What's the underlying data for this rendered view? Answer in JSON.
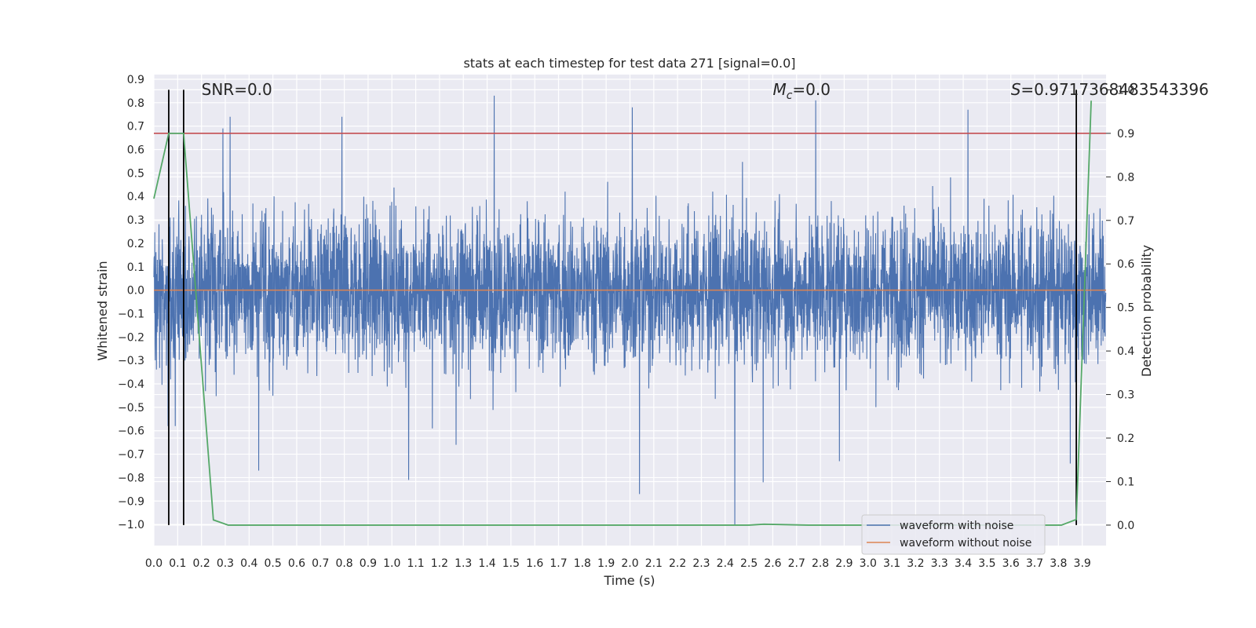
{
  "chart_data": {
    "type": "line",
    "title": "stats at each timestep for test data 271 [signal=0.0]",
    "xlabel": "Time (s)",
    "ylabel_left": "Whitened strain",
    "ylabel_right": "Detection probability",
    "xlim": [
      0.0,
      4.0
    ],
    "ylim_left": [
      -1.09,
      0.92
    ],
    "ylim_right": [
      -0.047,
      1.035
    ],
    "x_ticks": [
      "0.0",
      "0.1",
      "0.2",
      "0.3",
      "0.4",
      "0.5",
      "0.6",
      "0.7",
      "0.8",
      "0.9",
      "1.0",
      "1.1",
      "1.2",
      "1.3",
      "1.4",
      "1.5",
      "1.6",
      "1.7",
      "1.8",
      "1.9",
      "2.0",
      "2.1",
      "2.2",
      "2.3",
      "2.4",
      "2.5",
      "2.6",
      "2.7",
      "2.8",
      "2.9",
      "3.0",
      "3.1",
      "3.2",
      "3.3",
      "3.4",
      "3.5",
      "3.6",
      "3.7",
      "3.8",
      "3.9"
    ],
    "y_ticks_left": [
      "0.9",
      "0.8",
      "0.7",
      "0.6",
      "0.5",
      "0.4",
      "0.3",
      "0.2",
      "0.1",
      "0.0",
      "−0.1",
      "−0.2",
      "−0.3",
      "−0.4",
      "−0.5",
      "−0.6",
      "−0.7",
      "−0.8",
      "−0.9",
      "−1.0"
    ],
    "y_ticks_right": [
      "1.0",
      "0.9",
      "0.8",
      "0.7",
      "0.6",
      "0.5",
      "0.4",
      "0.3",
      "0.2",
      "0.1",
      "0.0"
    ],
    "grid": true,
    "legend_placement": "lower-right",
    "series": [
      {
        "name": "waveform with noise",
        "axis": "left",
        "color": "#4c72b0",
        "kind": "noise",
        "sigma": 0.16,
        "amplitude_range": [
          -1.0,
          0.83
        ],
        "n_samples": 4096,
        "outliers": [
          {
            "x": 0.06,
            "y": -0.58
          },
          {
            "x": 0.09,
            "y": -0.58
          },
          {
            "x": 0.29,
            "y": 0.69
          },
          {
            "x": 0.32,
            "y": 0.74
          },
          {
            "x": 0.44,
            "y": -0.77
          },
          {
            "x": 0.79,
            "y": 0.74
          },
          {
            "x": 1.07,
            "y": -0.81
          },
          {
            "x": 1.17,
            "y": -0.59
          },
          {
            "x": 1.27,
            "y": -0.66
          },
          {
            "x": 1.43,
            "y": 0.83
          },
          {
            "x": 2.01,
            "y": 0.78
          },
          {
            "x": 2.04,
            "y": -0.87
          },
          {
            "x": 2.44,
            "y": -1.0
          },
          {
            "x": 2.56,
            "y": -0.82
          },
          {
            "x": 2.78,
            "y": 0.81
          },
          {
            "x": 2.88,
            "y": -0.73
          },
          {
            "x": 3.42,
            "y": 0.77
          },
          {
            "x": 3.85,
            "y": -0.74
          }
        ]
      },
      {
        "name": "waveform without noise",
        "axis": "left",
        "color": "#dd8452",
        "x": [
          0.0,
          4.0
        ],
        "y": [
          0.0,
          0.0
        ]
      },
      {
        "name": "",
        "axis": "right",
        "color": "#55a868",
        "x": [
          0.0,
          0.0625,
          0.125,
          0.25,
          0.3125,
          0.5,
          1.0,
          1.5,
          2.0,
          2.5,
          2.5625,
          2.75,
          3.0,
          3.5,
          3.8125,
          3.875,
          3.9375
        ],
        "y": [
          0.75,
          0.9,
          0.9,
          0.012,
          0.0,
          0.0,
          0.0,
          0.0,
          0.0,
          0.0,
          0.002,
          0.0,
          0.0,
          0.0,
          0.0,
          0.013,
          0.975
        ]
      }
    ],
    "threshold": {
      "axis": "right",
      "y": 0.9,
      "color": "#c44e52"
    },
    "vlines": [
      0.0625,
      0.125,
      3.875
    ],
    "annotations": [
      {
        "text": "SNR=0.0",
        "x": 0.2
      },
      {
        "text_main": "M",
        "text_sub": "c",
        "text_rest": "=0.0",
        "x": 2.6
      },
      {
        "text_main": "S",
        "text_rest": "=0.9717368483543396",
        "x": 3.6
      }
    ]
  }
}
